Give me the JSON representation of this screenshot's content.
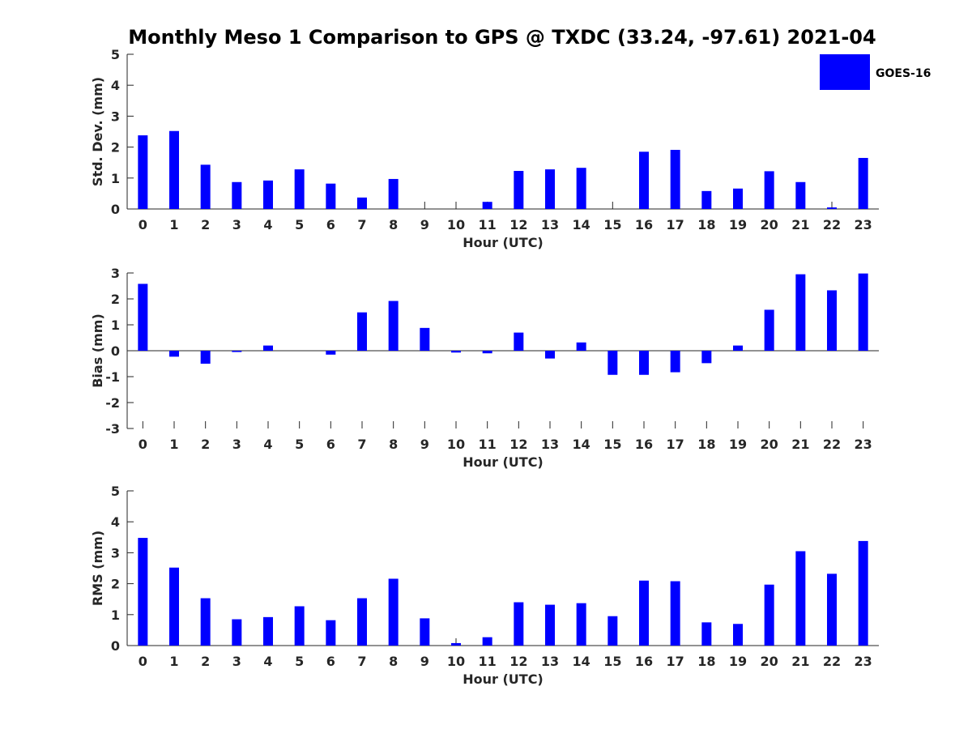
{
  "colors": {
    "bar": "#0000ff",
    "axis": "#262626",
    "background": "#ffffff"
  },
  "chart_data": {
    "type": "bar",
    "title": "Monthly Meso 1 Comparison to GPS @ TXDC (33.24, -97.61) 2021-04",
    "legend": {
      "entries": [
        "GOES-16"
      ],
      "position": "top-right"
    },
    "categories": [
      "0",
      "1",
      "2",
      "3",
      "4",
      "5",
      "6",
      "7",
      "8",
      "9",
      "10",
      "11",
      "12",
      "13",
      "14",
      "15",
      "16",
      "17",
      "18",
      "19",
      "20",
      "21",
      "22",
      "23"
    ],
    "panels": [
      {
        "name": "std-dev",
        "xlabel": "Hour (UTC)",
        "ylabel": "Std. Dev. (mm)",
        "ylim": [
          0,
          5
        ],
        "yticks": [
          0,
          1,
          2,
          3,
          4,
          5
        ],
        "series": [
          {
            "name": "GOES-16",
            "values": [
              2.38,
              2.52,
              1.43,
              0.87,
              0.92,
              1.28,
              0.82,
              0.37,
              0.97,
              0,
              0,
              0.23,
              1.23,
              1.28,
              1.33,
              0,
              1.85,
              1.91,
              0.58,
              0.66,
              1.22,
              0.87,
              0.05,
              1.65
            ]
          }
        ]
      },
      {
        "name": "bias",
        "xlabel": "Hour (UTC)",
        "ylabel": "Bias (mm)",
        "ylim": [
          -3,
          3
        ],
        "yticks": [
          -3,
          -2,
          -1,
          0,
          1,
          2,
          3
        ],
        "series": [
          {
            "name": "GOES-16",
            "values": [
              2.58,
              -0.23,
              -0.5,
              -0.05,
              0.2,
              0,
              -0.15,
              1.48,
              1.92,
              0.88,
              -0.07,
              -0.1,
              0.7,
              -0.3,
              0.32,
              -0.93,
              -0.93,
              -0.83,
              -0.48,
              0.2,
              1.58,
              2.95,
              2.33,
              2.98
            ]
          }
        ]
      },
      {
        "name": "rms",
        "xlabel": "Hour (UTC)",
        "ylabel": "RMS (mm)",
        "ylim": [
          0,
          5
        ],
        "yticks": [
          0,
          1,
          2,
          3,
          4,
          5
        ],
        "series": [
          {
            "name": "GOES-16",
            "values": [
              3.48,
              2.52,
              1.53,
              0.85,
              0.92,
              1.27,
              0.82,
              1.53,
              2.16,
              0.88,
              0.08,
              0.27,
              1.4,
              1.32,
              1.37,
              0.95,
              2.1,
              2.08,
              0.75,
              0.7,
              1.97,
              3.05,
              2.32,
              3.38
            ]
          }
        ]
      }
    ]
  }
}
